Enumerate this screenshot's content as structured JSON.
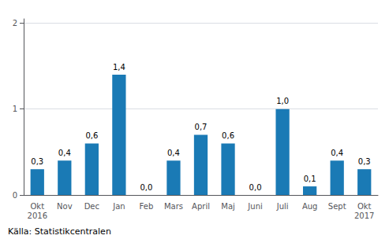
{
  "chart_data": {
    "type": "bar",
    "categories": [
      "Okt\n2016",
      "Nov",
      "Dec",
      "Jan",
      "Feb",
      "Mars",
      "April",
      "Maj",
      "Juni",
      "Juli",
      "Aug",
      "Sept",
      "Okt\n2017"
    ],
    "values": [
      0.3,
      0.4,
      0.6,
      1.4,
      0.0,
      0.4,
      0.7,
      0.6,
      0.0,
      1.0,
      0.1,
      0.4,
      0.3
    ],
    "value_labels": [
      "0,3",
      "0,4",
      "0,6",
      "1,4",
      "0,0",
      "0,4",
      "0,7",
      "0,6",
      "0,0",
      "1,0",
      "0,1",
      "0,4",
      "0,3"
    ],
    "data_labels": true,
    "color": "#1a7ab5",
    "ylim": [
      0,
      2.05
    ],
    "yticks": [
      0,
      1,
      2
    ],
    "grid": true,
    "annotations": [
      "Källa: Statistikcentralen"
    ]
  }
}
